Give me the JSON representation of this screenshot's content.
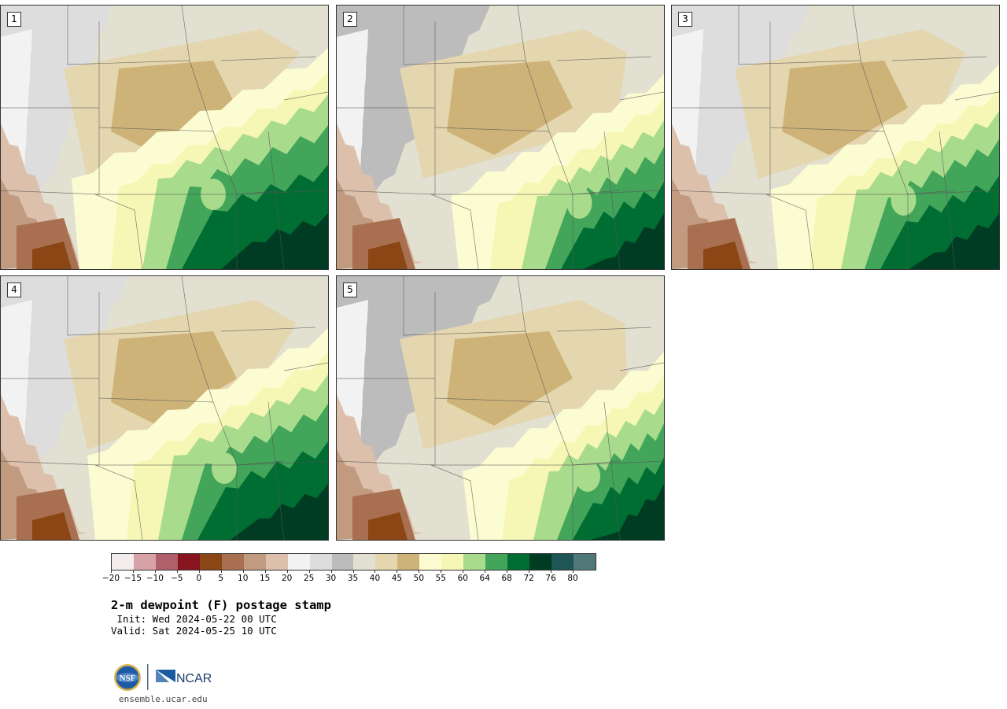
{
  "panels": [
    {
      "label": "1"
    },
    {
      "label": "2"
    },
    {
      "label": "3"
    },
    {
      "label": "4"
    },
    {
      "label": "5"
    }
  ],
  "colorbar": {
    "tick_labels": [
      "−20",
      "−15",
      "−10",
      "−5",
      "0",
      "5",
      "10",
      "15",
      "20",
      "25",
      "30",
      "35",
      "40",
      "45",
      "50",
      "55",
      "60",
      "64",
      "68",
      "72",
      "76",
      "80"
    ],
    "colors": [
      "#f3ecec",
      "#d6a2a8",
      "#b0606a",
      "#87141e",
      "#8a4614",
      "#a87050",
      "#c19a80",
      "#dcc0ac",
      "#f2f2f2",
      "#dddddd",
      "#bcbcbc",
      "#e2e0d0",
      "#e4d6ae",
      "#cdb378",
      "#fcfcd2",
      "#f6f7b4",
      "#a8dc8c",
      "#42a55a",
      "#006e32",
      "#003c23",
      "#1e5555",
      "#507878"
    ]
  },
  "title": "2-m dewpoint (F) postage stamp",
  "init_text": " Init: Wed 2024-05-22 00 UTC",
  "valid_text": "Valid: Sat 2024-05-25 10 UTC",
  "logos": {
    "nsf": "NSF",
    "ncar": "NCAR"
  },
  "website": "ensemble.ucar.edu"
}
